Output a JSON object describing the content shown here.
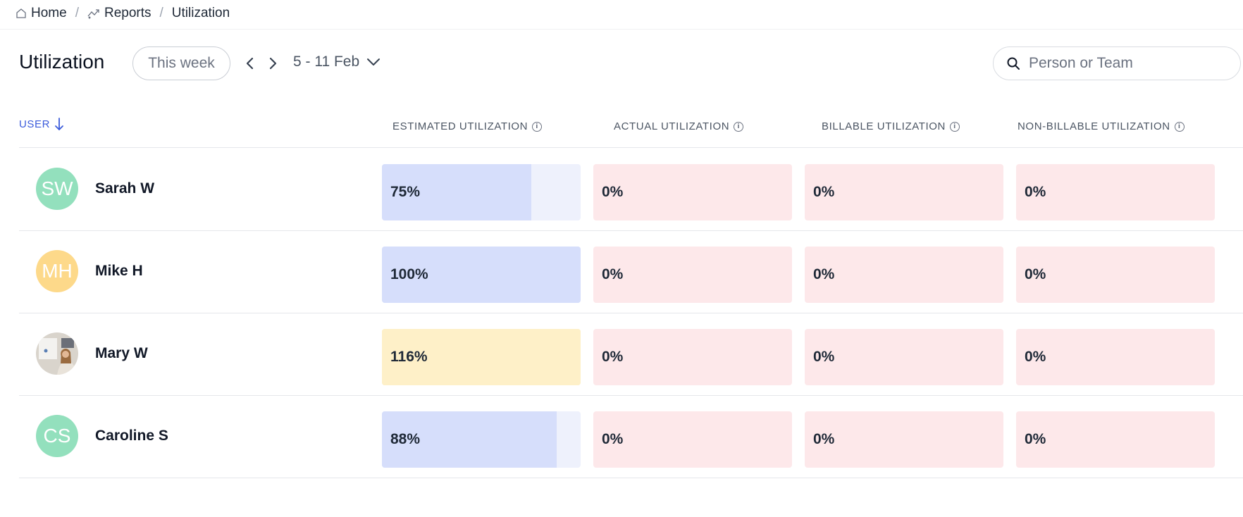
{
  "breadcrumb": [
    {
      "label": "Home",
      "icon": "home-icon"
    },
    {
      "label": "Reports",
      "icon": "reports-icon"
    },
    {
      "label": "Utilization"
    }
  ],
  "breadcrumb_separator": "/",
  "header": {
    "title": "Utilization",
    "period_label": "This week",
    "date_range": "5 - 11 Feb"
  },
  "search": {
    "placeholder": "Person or Team",
    "value": ""
  },
  "columns": {
    "user": "USER",
    "estimated": "ESTIMATED UTILIZATION",
    "actual": "ACTUAL UTILIZATION",
    "billable": "BILLABLE UTILIZATION",
    "non_billable": "NON-BILLABLE UTILIZATION"
  },
  "colors": {
    "accent": "#3b5bdb",
    "estimated_fill": "#d6defb",
    "estimated_track": "#eef1fc",
    "over_capacity_fill": "#fef0c8",
    "zero_cell": "#fde8ea"
  },
  "rows": [
    {
      "name": "Sarah W",
      "initials": "SW",
      "avatar_color": "#93e0bd",
      "estimated": "75%",
      "estimated_fraction": 0.75,
      "over": false,
      "actual": "0%",
      "billable": "0%",
      "non_billable": "0%"
    },
    {
      "name": "Mike H",
      "initials": "MH",
      "avatar_color": "#fdd98a",
      "estimated": "100%",
      "estimated_fraction": 1.0,
      "over": false,
      "actual": "0%",
      "billable": "0%",
      "non_billable": "0%"
    },
    {
      "name": "Mary W",
      "initials": "",
      "avatar_color": "#d8cfc5",
      "avatar_photo": true,
      "estimated": "116%",
      "estimated_fraction": 1.0,
      "over": true,
      "actual": "0%",
      "billable": "0%",
      "non_billable": "0%"
    },
    {
      "name": "Caroline S",
      "initials": "CS",
      "avatar_color": "#93e0bd",
      "estimated": "88%",
      "estimated_fraction": 0.88,
      "over": false,
      "actual": "0%",
      "billable": "0%",
      "non_billable": "0%"
    }
  ]
}
